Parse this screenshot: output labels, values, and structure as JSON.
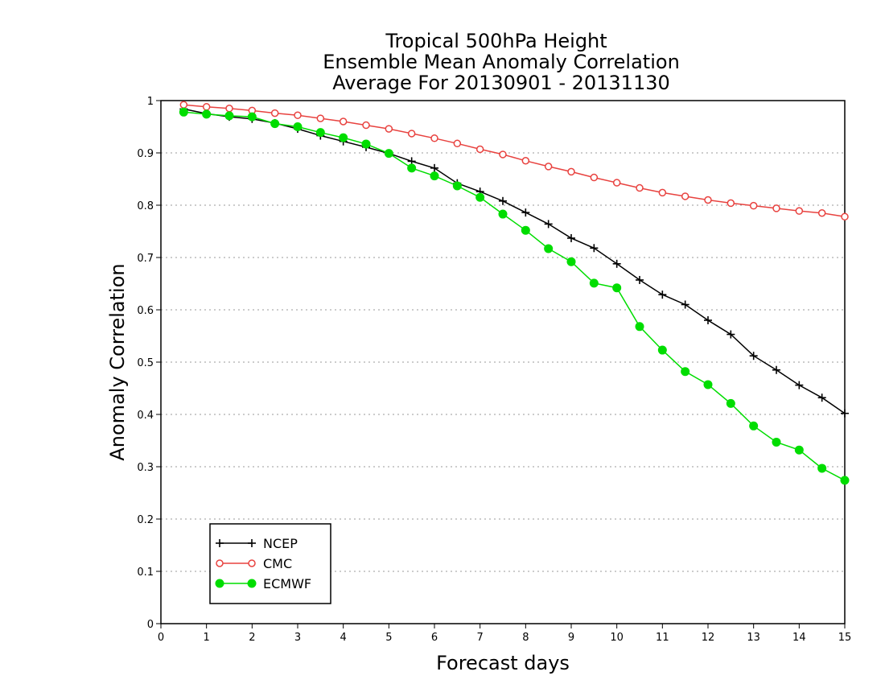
{
  "chart_data": {
    "type": "line",
    "title_lines": [
      "Tropical 500hPa Height",
      "Ensemble Mean Anomaly Correlation",
      "Average For 20130901 - 20131130"
    ],
    "xlabel": "Forecast days",
    "ylabel": "Anomaly Correlation",
    "xlim": [
      0,
      15
    ],
    "ylim": [
      0,
      1
    ],
    "x_ticks": [
      "0",
      "1",
      "2",
      "3",
      "4",
      "5",
      "6",
      "7",
      "8",
      "9",
      "10",
      "11",
      "12",
      "13",
      "14",
      "15"
    ],
    "y_ticks": [
      "0",
      "0.1",
      "0.2",
      "0.3",
      "0.4",
      "0.5",
      "0.6",
      "0.7",
      "0.8",
      "0.9",
      "1"
    ],
    "grid": true,
    "legend_position": "bottom-left",
    "x": [
      0.5,
      1,
      1.5,
      2,
      2.5,
      3,
      3.5,
      4,
      4.5,
      5,
      5.5,
      6,
      6.5,
      7,
      7.5,
      8,
      8.5,
      9,
      9.5,
      10,
      10.5,
      11,
      11.5,
      12,
      12.5,
      13,
      13.5,
      14,
      14.5,
      15
    ],
    "series": [
      {
        "name": "NCEP",
        "color": "#000000",
        "marker": "plus",
        "values": [
          0.984,
          0.975,
          0.969,
          0.965,
          0.957,
          0.946,
          0.933,
          0.922,
          0.911,
          0.899,
          0.884,
          0.871,
          0.842,
          0.826,
          0.808,
          0.786,
          0.764,
          0.737,
          0.718,
          0.688,
          0.657,
          0.629,
          0.61,
          0.58,
          0.553,
          0.512,
          0.485,
          0.456,
          0.432,
          0.402
        ]
      },
      {
        "name": "CMC",
        "color": "#e8423f",
        "marker": "open-circle",
        "values": [
          0.992,
          0.988,
          0.985,
          0.981,
          0.976,
          0.972,
          0.966,
          0.96,
          0.953,
          0.946,
          0.937,
          0.928,
          0.918,
          0.907,
          0.897,
          0.885,
          0.874,
          0.864,
          0.853,
          0.843,
          0.833,
          0.824,
          0.817,
          0.81,
          0.804,
          0.799,
          0.794,
          0.789,
          0.785,
          0.778
        ]
      },
      {
        "name": "ECMWF",
        "color": "#00dd00",
        "marker": "filled-circle",
        "values": [
          0.978,
          0.974,
          0.971,
          0.969,
          0.956,
          0.95,
          0.939,
          0.929,
          0.917,
          0.899,
          0.871,
          0.856,
          0.837,
          0.815,
          0.783,
          0.752,
          0.717,
          0.692,
          0.651,
          0.642,
          0.568,
          0.523,
          0.482,
          0.457,
          0.421,
          0.378,
          0.347,
          0.332,
          0.297,
          0.274
        ]
      }
    ]
  }
}
